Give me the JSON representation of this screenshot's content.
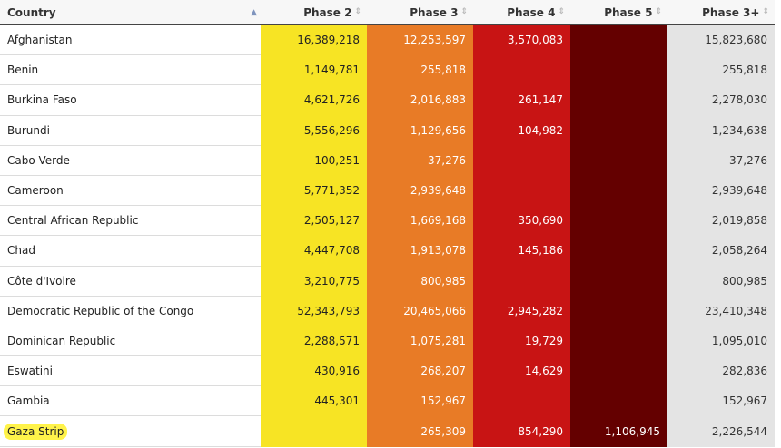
{
  "headers": {
    "country": "Country",
    "phase2": "Phase 2",
    "phase3": "Phase 3",
    "phase4": "Phase 4",
    "phase5": "Phase 5",
    "phase3plus": "Phase 3+"
  },
  "sort_glyph": "▲",
  "sort_glyph_neutral": "⇕",
  "colors": {
    "phase2": "#f7e424",
    "phase3": "#e87b26",
    "phase4": "#c81414",
    "phase5": "#640000",
    "phase3plus": "#e4e4e4",
    "highlight": "#fff34a"
  },
  "rows": [
    {
      "country": "Afghanistan",
      "phase2": "16,389,218",
      "phase3": "12,253,597",
      "phase4": "3,570,083",
      "phase5": "",
      "phase3plus": "15,823,680"
    },
    {
      "country": "Benin",
      "phase2": "1,149,781",
      "phase3": "255,818",
      "phase4": "",
      "phase5": "",
      "phase3plus": "255,818"
    },
    {
      "country": "Burkina Faso",
      "phase2": "4,621,726",
      "phase3": "2,016,883",
      "phase4": "261,147",
      "phase5": "",
      "phase3plus": "2,278,030"
    },
    {
      "country": "Burundi",
      "phase2": "5,556,296",
      "phase3": "1,129,656",
      "phase4": "104,982",
      "phase5": "",
      "phase3plus": "1,234,638"
    },
    {
      "country": "Cabo Verde",
      "phase2": "100,251",
      "phase3": "37,276",
      "phase4": "",
      "phase5": "",
      "phase3plus": "37,276"
    },
    {
      "country": "Cameroon",
      "phase2": "5,771,352",
      "phase3": "2,939,648",
      "phase4": "",
      "phase5": "",
      "phase3plus": "2,939,648"
    },
    {
      "country": "Central African Republic",
      "phase2": "2,505,127",
      "phase3": "1,669,168",
      "phase4": "350,690",
      "phase5": "",
      "phase3plus": "2,019,858"
    },
    {
      "country": "Chad",
      "phase2": "4,447,708",
      "phase3": "1,913,078",
      "phase4": "145,186",
      "phase5": "",
      "phase3plus": "2,058,264"
    },
    {
      "country": "Côte d'Ivoire",
      "phase2": "3,210,775",
      "phase3": "800,985",
      "phase4": "",
      "phase5": "",
      "phase3plus": "800,985"
    },
    {
      "country": "Democratic Republic of the Congo",
      "phase2": "52,343,793",
      "phase3": "20,465,066",
      "phase4": "2,945,282",
      "phase5": "",
      "phase3plus": "23,410,348"
    },
    {
      "country": "Dominican Republic",
      "phase2": "2,288,571",
      "phase3": "1,075,281",
      "phase4": "19,729",
      "phase5": "",
      "phase3plus": "1,095,010"
    },
    {
      "country": "Eswatini",
      "phase2": "430,916",
      "phase3": "268,207",
      "phase4": "14,629",
      "phase5": "",
      "phase3plus": "282,836"
    },
    {
      "country": "Gambia",
      "phase2": "445,301",
      "phase3": "152,967",
      "phase4": "",
      "phase5": "",
      "phase3plus": "152,967"
    },
    {
      "country": "Gaza Strip",
      "phase2": "",
      "phase3": "265,309",
      "phase4": "854,290",
      "phase5": "1,106,945",
      "phase3plus": "2,226,544",
      "highlighted": true
    }
  ]
}
